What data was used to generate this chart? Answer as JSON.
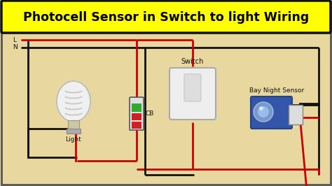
{
  "title": "Photocell Sensor in Switch to light Wiring",
  "title_color": "#000000",
  "title_bg": "#FFFF00",
  "bg_color": "#E8D8A0",
  "wire_red": "#CC0000",
  "wire_black": "#111111",
  "label_L": "L",
  "label_N": "N",
  "label_light": "Light",
  "label_cb": "CB",
  "label_switch": "Switch",
  "label_sensor": "Bay Night Sensor",
  "figsize": [
    4.74,
    2.66
  ],
  "dpi": 100
}
